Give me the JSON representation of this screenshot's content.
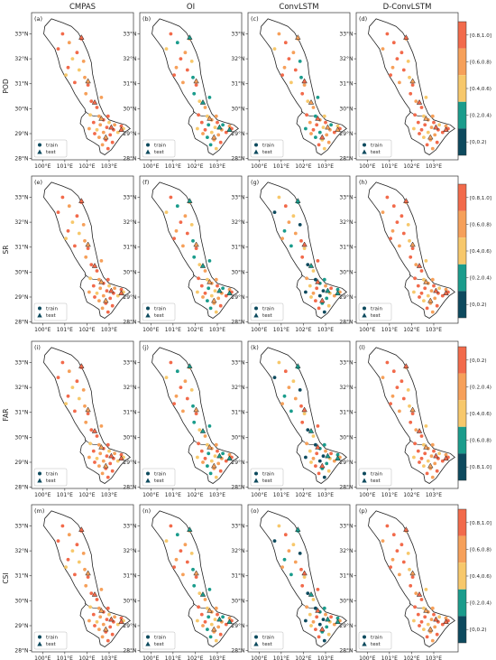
{
  "columns": [
    "CMPAS",
    "OI",
    "ConvLSTM",
    "D-ConvLSTM"
  ],
  "rows": [
    {
      "metric": "POD",
      "letters": [
        "(a)",
        "(b)",
        "(c)",
        "(d)"
      ],
      "colorbar": [
        "[0.8,1.0]",
        "[0.6,0.8)",
        "[0.4,0.6)",
        "[0.2,0.4)",
        "[0,0.2)"
      ]
    },
    {
      "metric": "SR",
      "letters": [
        "(e)",
        "(f)",
        "(g)",
        "(h)"
      ],
      "colorbar": [
        "[0.8,1.0]",
        "[0.6,0.8)",
        "[0.4,0.6)",
        "[0.2,0.4)",
        "[0,0.2)"
      ]
    },
    {
      "metric": "FAR",
      "letters": [
        "(i)",
        "(j)",
        "(k)",
        "(l)"
      ],
      "colorbar": [
        "[0,0.2)",
        "[0.2,0.4)",
        "[0.4,0.6)",
        "[0.6,0.8)",
        "[0.8,1.0]"
      ]
    },
    {
      "metric": "CSI",
      "letters": [
        "(m)",
        "(n)",
        "(o)",
        "(p)"
      ],
      "colorbar": [
        "[0.8,1.0]",
        "[0.6,0.8)",
        "[0.4,0.6)",
        "[0.2,0.4)",
        "[0,0.2)"
      ]
    }
  ],
  "legend": {
    "train": "train",
    "test": "test"
  },
  "xticks": [
    "100°E",
    "101°E",
    "102°E",
    "103°E"
  ],
  "yticks": [
    "33°N",
    "32°N",
    "31°N",
    "30°N",
    "29°N",
    "28°N"
  ],
  "colorbar_colors_top_to_bottom": [
    "#f26a4b",
    "#f6a05a",
    "#f7c86b",
    "#1a9c8c",
    "#0d4a5e"
  ]
}
